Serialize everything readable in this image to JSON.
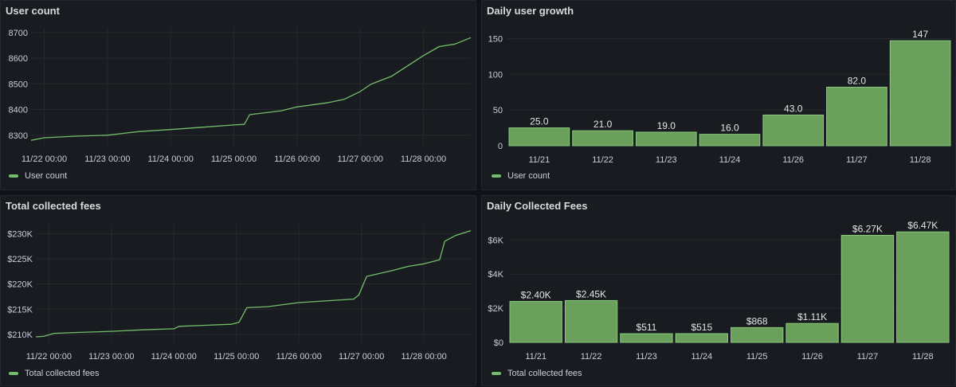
{
  "colors": {
    "series": "#73bf69",
    "bar_fill": "#6a9f5c",
    "bar_stroke": "#89c97c",
    "grid": "#26292f",
    "text": "#ccccdc"
  },
  "panels": {
    "user_count": {
      "title": "User count",
      "legend": "User count",
      "chart_data": {
        "type": "line",
        "title": "User count",
        "x_ticks": [
          "11/22 00:00",
          "11/23 00:00",
          "11/24 00:00",
          "11/25 00:00",
          "11/26 00:00",
          "11/27 00:00",
          "11/28 00:00"
        ],
        "x_range": [
          "11/21 19:00",
          "11/28 18:00"
        ],
        "y_ticks": [
          "8300",
          "8400",
          "8500",
          "8600",
          "8700"
        ],
        "ylim": [
          8262,
          8718
        ],
        "series": [
          {
            "name": "User count",
            "x": [
              "11/21 19:00",
              "11/22 00:00",
              "11/22 12:00",
              "11/23 00:00",
              "11/23 06:00",
              "11/23 12:00",
              "11/24 00:00",
              "11/24 12:00",
              "11/25 00:00",
              "11/25 04:00",
              "11/25 06:00",
              "11/25 18:00",
              "11/26 00:00",
              "11/26 12:00",
              "11/26 18:00",
              "11/27 00:00",
              "11/27 04:00",
              "11/27 12:00",
              "11/27 18:00",
              "11/28 00:00",
              "11/28 06:00",
              "11/28 12:00",
              "11/28 18:00"
            ],
            "y": [
              8280,
              8290,
              8296,
              8300,
              8307,
              8314,
              8322,
              8331,
              8340,
              8342,
              8380,
              8395,
              8410,
              8427,
              8440,
              8470,
              8498,
              8530,
              8570,
              8610,
              8645,
              8655,
              8680
            ]
          }
        ]
      }
    },
    "daily_user_growth": {
      "title": "Daily user growth",
      "legend": "User count",
      "chart_data": {
        "type": "bar",
        "title": "Daily user growth",
        "categories": [
          "11/21",
          "11/22",
          "11/23",
          "11/24",
          "11/26",
          "11/27",
          "11/28"
        ],
        "values": [
          25,
          21,
          19,
          16,
          43,
          82,
          147
        ],
        "value_labels": [
          "25.0",
          "21.0",
          "19.0",
          "16.0",
          "43.0",
          "82.0",
          "147"
        ],
        "y_ticks": [
          "0",
          "50",
          "100",
          "150"
        ],
        "ylim": [
          0,
          165
        ]
      }
    },
    "total_fees": {
      "title": "Total collected fees",
      "legend": "Total collected fees",
      "chart_data": {
        "type": "line",
        "title": "Total collected fees",
        "x_ticks": [
          "11/22 00:00",
          "11/23 00:00",
          "11/24 00:00",
          "11/25 00:00",
          "11/26 00:00",
          "11/27 00:00",
          "11/28 00:00"
        ],
        "x_range": [
          "11/21 19:00",
          "11/28 18:00"
        ],
        "y_ticks": [
          "$210K",
          "$215K",
          "$220K",
          "$225K",
          "$230K"
        ],
        "ylim": [
          208400,
          231800
        ],
        "series": [
          {
            "name": "Total collected fees",
            "x": [
              "11/21 19:00",
              "11/21 22:00",
              "11/22 02:00",
              "11/22 12:00",
              "11/23 00:00",
              "11/23 12:00",
              "11/24 00:00",
              "11/24 02:00",
              "11/24 12:00",
              "11/24 22:00",
              "11/25 01:00",
              "11/25 04:00",
              "11/25 12:00",
              "11/26 00:00",
              "11/26 12:00",
              "11/26 21:00",
              "11/26 23:00",
              "11/27 02:00",
              "11/27 12:00",
              "11/27 18:00",
              "11/28 00:00",
              "11/28 06:00",
              "11/28 08:00",
              "11/28 12:00",
              "11/28 18:00"
            ],
            "y": [
              209500,
              209600,
              210200,
              210400,
              210600,
              210900,
              211100,
              211600,
              211800,
              212000,
              212400,
              215300,
              215500,
              216300,
              216700,
              217000,
              217800,
              221500,
              222700,
              223500,
              224000,
              224800,
              228500,
              229600,
              230600
            ]
          }
        ]
      }
    },
    "daily_fees": {
      "title": "Daily Collected Fees",
      "legend": "Total collected fees",
      "chart_data": {
        "type": "bar",
        "title": "Daily Collected Fees",
        "categories": [
          "11/21",
          "11/22",
          "11/23",
          "11/24",
          "11/25",
          "11/26",
          "11/27",
          "11/28"
        ],
        "values": [
          2400,
          2450,
          511,
          515,
          868,
          1110,
          6270,
          6470
        ],
        "value_labels": [
          "$2.40K",
          "$2.45K",
          "$511",
          "$515",
          "$868",
          "$1.11K",
          "$6.27K",
          "$6.47K"
        ],
        "y_ticks": [
          "$0",
          "$2K",
          "$4K",
          "$6K"
        ],
        "ylim": [
          0,
          6900
        ]
      }
    }
  }
}
